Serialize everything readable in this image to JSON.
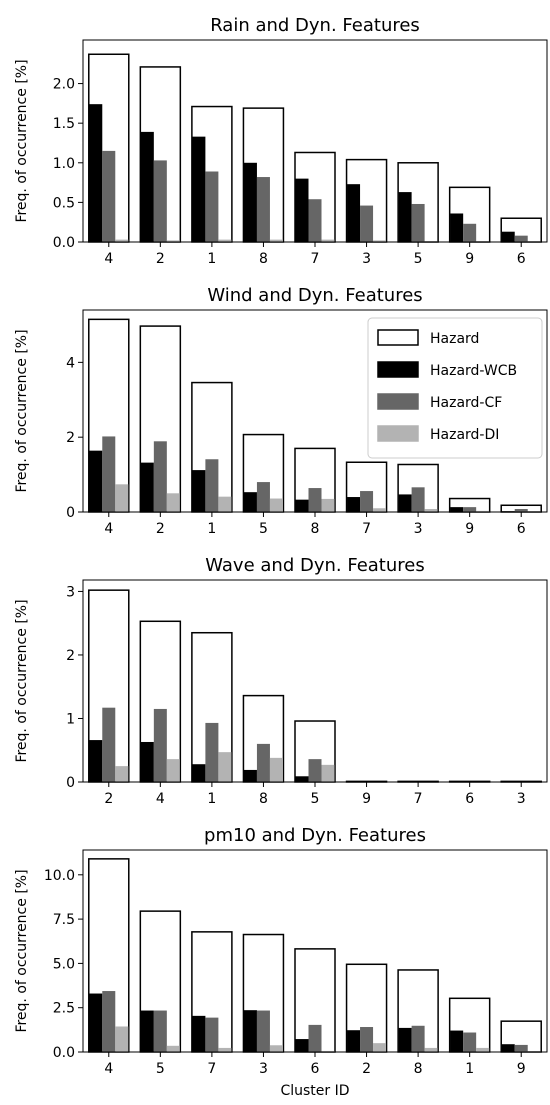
{
  "colors": {
    "hazard_edge": "#000000",
    "hazard_fill": "#ffffff",
    "wcb": "#000000",
    "cf": "#666666",
    "di": "#b3b3b3"
  },
  "legend": {
    "items": [
      {
        "label": "Hazard",
        "color": "#ffffff",
        "edge": "#000000"
      },
      {
        "label": "Hazard-WCB",
        "color": "#000000",
        "edge": "#000000"
      },
      {
        "label": "Hazard-CF",
        "color": "#666666",
        "edge": "#666666"
      },
      {
        "label": "Hazard-DI",
        "color": "#b3b3b3",
        "edge": "#b3b3b3"
      }
    ],
    "placement": "top-right",
    "panel": 1
  },
  "chart_data": [
    {
      "type": "bar",
      "title": "Rain and Dyn. Features",
      "xlabel": "",
      "ylabel": "Freq. of occurrence [%]",
      "categories": [
        "4",
        "2",
        "1",
        "8",
        "7",
        "3",
        "5",
        "9",
        "6"
      ],
      "ylim": [
        0,
        2.55
      ],
      "yticks": [
        "0.0",
        "0.5",
        "1.0",
        "1.5",
        "2.0"
      ],
      "series": [
        {
          "name": "Hazard",
          "values": [
            2.37,
            2.21,
            1.71,
            1.69,
            1.13,
            1.04,
            1.0,
            0.69,
            0.3
          ]
        },
        {
          "name": "Hazard-WCB",
          "values": [
            1.74,
            1.39,
            1.33,
            1.0,
            0.8,
            0.73,
            0.63,
            0.36,
            0.13
          ]
        },
        {
          "name": "Hazard-CF",
          "values": [
            1.15,
            1.03,
            0.89,
            0.82,
            0.54,
            0.46,
            0.48,
            0.23,
            0.08
          ]
        },
        {
          "name": "Hazard-DI",
          "values": [
            0.03,
            0.02,
            0.03,
            0.03,
            0.03,
            0.02,
            0.01,
            0.01,
            0.01
          ]
        }
      ]
    },
    {
      "type": "bar",
      "title": "Wind and Dyn. Features",
      "xlabel": "",
      "ylabel": "Freq. of occurrence [%]",
      "categories": [
        "4",
        "2",
        "1",
        "5",
        "8",
        "7",
        "3",
        "9",
        "6"
      ],
      "ylim": [
        0,
        5.4
      ],
      "yticks": [
        "0",
        "2",
        "4"
      ],
      "series": [
        {
          "name": "Hazard",
          "values": [
            5.15,
            4.97,
            3.46,
            2.07,
            1.7,
            1.33,
            1.27,
            0.36,
            0.18
          ]
        },
        {
          "name": "Hazard-WCB",
          "values": [
            1.64,
            1.32,
            1.12,
            0.53,
            0.33,
            0.4,
            0.47,
            0.13,
            0.02
          ]
        },
        {
          "name": "Hazard-CF",
          "values": [
            2.02,
            1.89,
            1.41,
            0.8,
            0.64,
            0.56,
            0.66,
            0.13,
            0.08
          ]
        },
        {
          "name": "Hazard-DI",
          "values": [
            0.74,
            0.5,
            0.41,
            0.36,
            0.35,
            0.1,
            0.08,
            0.03,
            0.02
          ]
        }
      ]
    },
    {
      "type": "bar",
      "title": "Wave and Dyn. Features",
      "xlabel": "",
      "ylabel": "Freq. of occurrence [%]",
      "categories": [
        "2",
        "4",
        "1",
        "8",
        "5",
        "9",
        "7",
        "6",
        "3"
      ],
      "ylim": [
        0,
        3.18
      ],
      "yticks": [
        "0",
        "1",
        "2",
        "3"
      ],
      "series": [
        {
          "name": "Hazard",
          "values": [
            3.02,
            2.53,
            2.35,
            1.36,
            0.96,
            0.01,
            0.01,
            0.01,
            0.01
          ]
        },
        {
          "name": "Hazard-WCB",
          "values": [
            0.66,
            0.63,
            0.28,
            0.19,
            0.09,
            0.0,
            0.0,
            0.0,
            0.0
          ]
        },
        {
          "name": "Hazard-CF",
          "values": [
            1.17,
            1.15,
            0.93,
            0.6,
            0.36,
            0.0,
            0.0,
            0.0,
            0.0
          ]
        },
        {
          "name": "Hazard-DI",
          "values": [
            0.25,
            0.36,
            0.47,
            0.38,
            0.27,
            0.0,
            0.0,
            0.0,
            0.0
          ]
        }
      ]
    },
    {
      "type": "bar",
      "title": "pm10 and Dyn. Features",
      "xlabel": "Cluster ID",
      "ylabel": "Freq. of occurrence [%]",
      "categories": [
        "4",
        "5",
        "7",
        "3",
        "6",
        "2",
        "8",
        "1",
        "9"
      ],
      "ylim": [
        0,
        11.4
      ],
      "yticks": [
        "0.0",
        "2.5",
        "5.0",
        "7.5",
        "10.0"
      ],
      "series": [
        {
          "name": "Hazard",
          "values": [
            10.9,
            7.95,
            6.78,
            6.63,
            5.82,
            4.95,
            4.63,
            3.03,
            1.74
          ]
        },
        {
          "name": "Hazard-WCB",
          "values": [
            3.3,
            2.34,
            2.04,
            2.36,
            0.73,
            1.23,
            1.36,
            1.21,
            0.44
          ]
        },
        {
          "name": "Hazard-CF",
          "values": [
            3.44,
            2.34,
            1.94,
            2.34,
            1.53,
            1.41,
            1.48,
            1.1,
            0.4
          ]
        },
        {
          "name": "Hazard-DI",
          "values": [
            1.44,
            0.35,
            0.23,
            0.38,
            0.06,
            0.5,
            0.23,
            0.23,
            0.04
          ]
        }
      ]
    }
  ]
}
